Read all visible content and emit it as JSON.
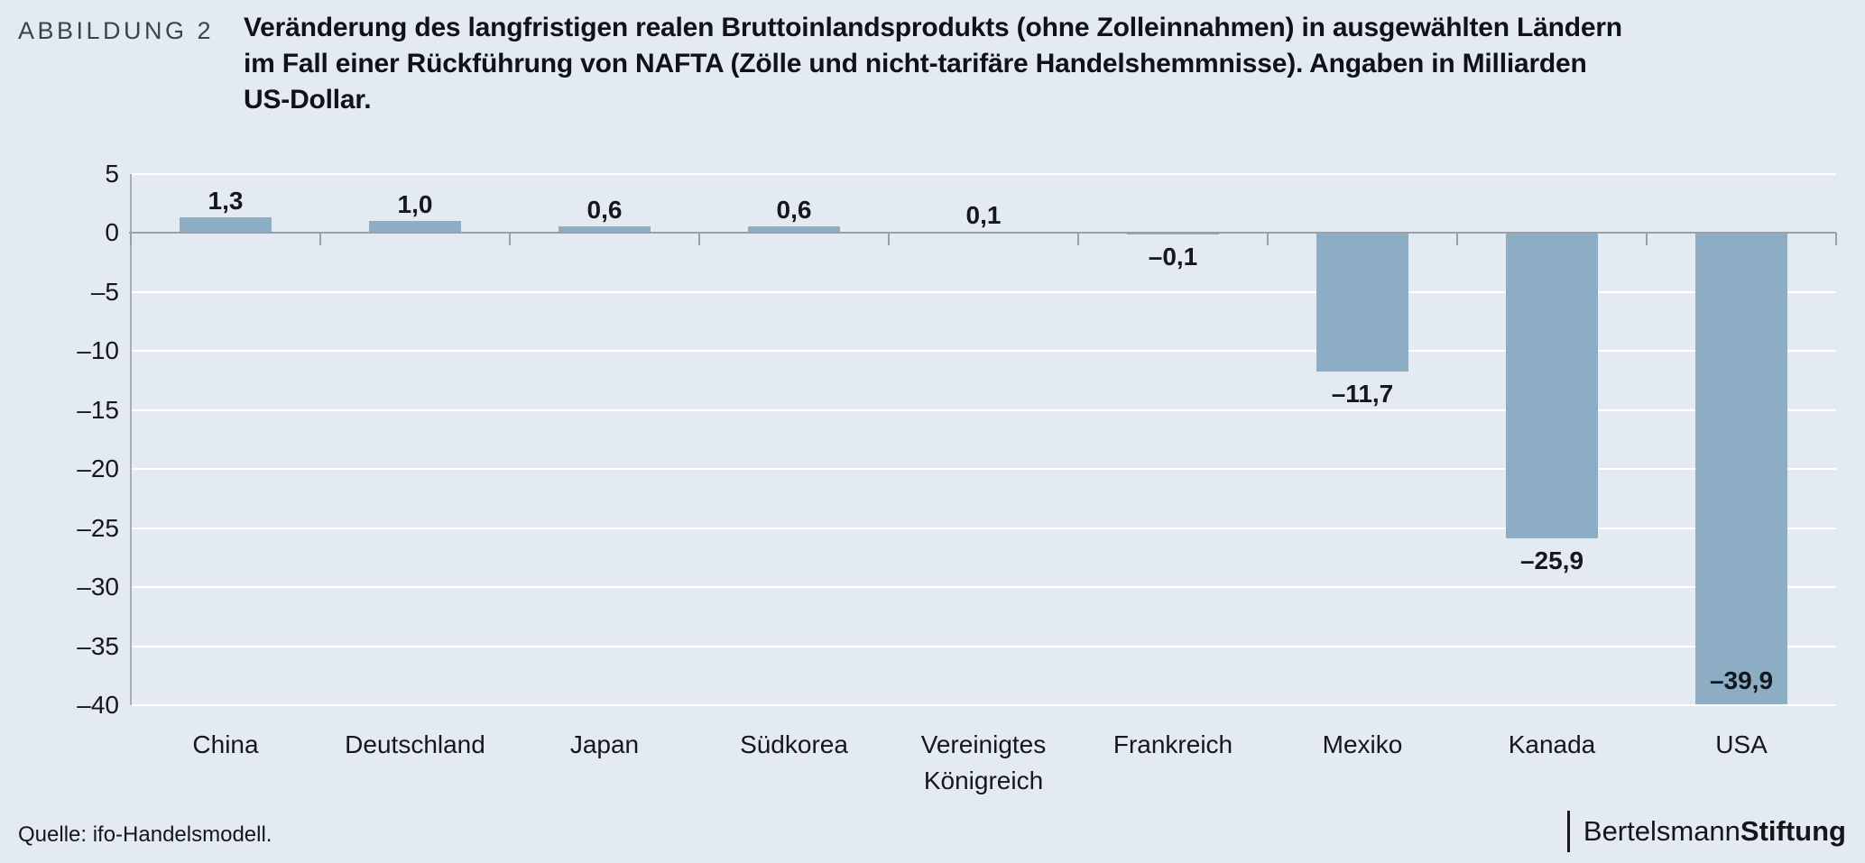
{
  "figure_label": "ABBILDUNG 2",
  "title_lines": [
    "Veränderung des langfristigen realen Bruttoinlandsprodukts (ohne Zolleinnahmen) in ausgewählten Ländern",
    "im Fall einer Rückführung von NAFTA (Zölle und nicht-tarifäre Handelshemmnisse). Angaben in Milliarden",
    "US-Dollar."
  ],
  "chart_data": {
    "type": "bar",
    "title": "Veränderung des langfristigen realen Bruttoinlandsprodukts (ohne Zolleinnahmen) in ausgewählten Ländern im Fall einer Rückführung von NAFTA (Zölle und nicht-tarifäre Handelshemmnisse). Angaben in Milliarden US-Dollar.",
    "categories": [
      "China",
      "Deutschland",
      "Japan",
      "Südkorea",
      "Vereinigtes Königreich",
      "Frankreich",
      "Mexiko",
      "Kanada",
      "USA"
    ],
    "values": [
      1.3,
      1.0,
      0.6,
      0.6,
      0.1,
      -0.1,
      -11.7,
      -25.9,
      -39.9
    ],
    "value_labels": [
      "1,3",
      "1,0",
      "0,6",
      "0,6",
      "0,1",
      "–0,1",
      "–11,7",
      "–25,9",
      "–39,9"
    ],
    "value_label_positions": [
      "above",
      "above",
      "above",
      "above",
      "above",
      "below",
      "below",
      "below",
      "inside-bottom"
    ],
    "y_axis": {
      "min": -40,
      "max": 5,
      "tick_step": 5,
      "tick_values": [
        5,
        0,
        -5,
        -10,
        -15,
        -20,
        -25,
        -30,
        -35,
        -40
      ],
      "tick_labels": [
        "5",
        "0",
        "–5",
        "–10",
        "–15",
        "–20",
        "–25",
        "–30",
        "–35",
        "–40"
      ]
    },
    "grid": true,
    "legend": false,
    "colors": {
      "bar": "#8CADC4",
      "background": "#E4EAF1",
      "gridline": "#FFFFFF",
      "zero_line": "#9AA0A8",
      "axis_line": "#A9AFB7",
      "text": "#14171C"
    }
  },
  "footer": {
    "source": "Quelle: ifo-Handelsmodell.",
    "brand": {
      "regular": "Bertelsmann",
      "bold": "Stiftung"
    }
  }
}
